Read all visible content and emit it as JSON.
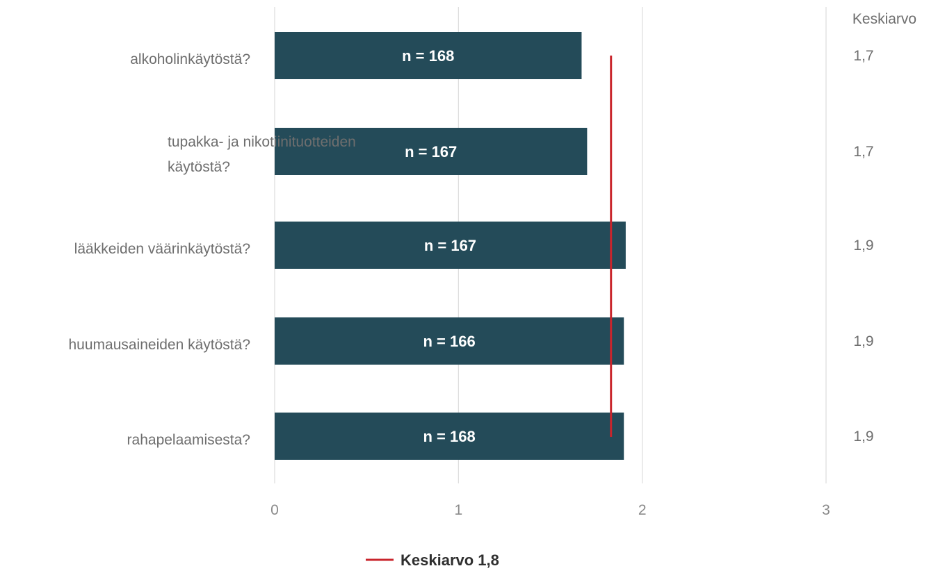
{
  "chart_data": {
    "type": "bar",
    "orientation": "horizontal",
    "categories": [
      "alkoholinkäytöstä?",
      "tupakka- ja nikotiinituotteiden käytöstä?",
      "lääkkeiden väärinkäytöstä?",
      "huumausaineiden käytöstä?",
      "rahapelaamisesta?"
    ],
    "values": [
      1.67,
      1.7,
      1.91,
      1.9,
      1.9
    ],
    "bar_labels": [
      "n = 168",
      "n = 167",
      "n = 167",
      "n = 166",
      "n = 168"
    ],
    "mean_column_header": "Keskiarvo",
    "mean_column_values": [
      "1,7",
      "1,7",
      "1,9",
      "1,9",
      "1,9"
    ],
    "reference_line": {
      "name": "Keskiarvo 1,8",
      "value": 1.83,
      "color": "#c9252c"
    },
    "xlim": [
      0,
      3
    ],
    "x_ticks": [
      "0",
      "1",
      "2",
      "3"
    ],
    "grid": "vertical",
    "legend_position": "bottom-center",
    "colors": {
      "bar": "#244b59",
      "grid": "#dcdcdc",
      "reference": "#c9252c"
    }
  }
}
